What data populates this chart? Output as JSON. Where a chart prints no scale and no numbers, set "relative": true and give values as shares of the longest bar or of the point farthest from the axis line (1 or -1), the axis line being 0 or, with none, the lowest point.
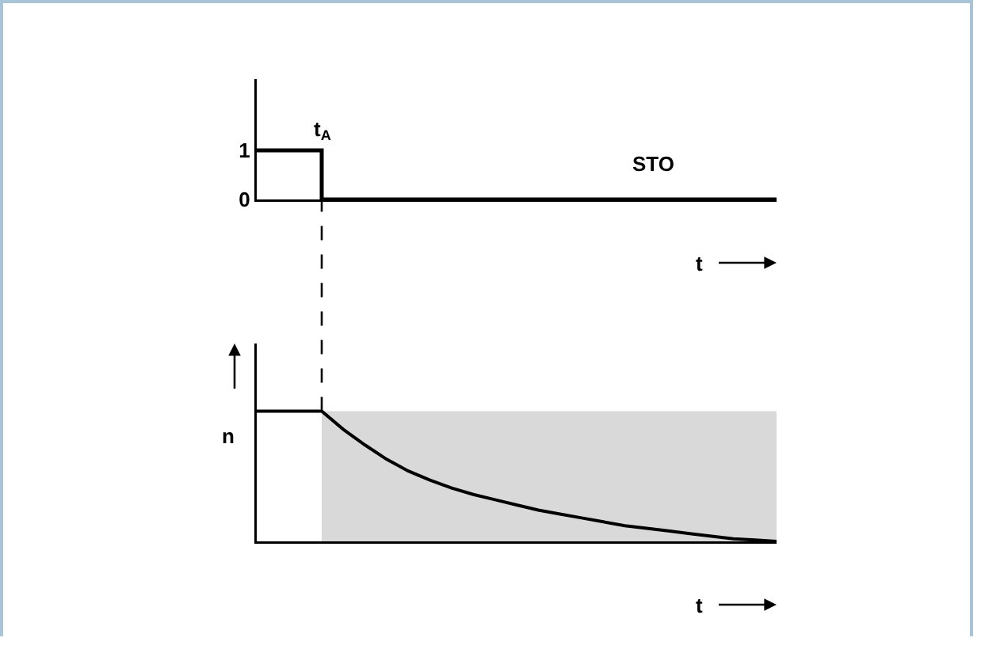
{
  "chart_data": [
    {
      "type": "step",
      "categories": [
        null,
        null,
        null,
        null,
        null,
        null,
        null,
        null,
        null
      ],
      "values": [
        1,
        0,
        0,
        0,
        0,
        0,
        0,
        0,
        0
      ],
      "color": "#000000",
      "ylim": [
        0,
        2.45
      ],
      "yticks": [
        0,
        1
      ],
      "xlabel": "t",
      "annotations": [
        "t$_{A}$",
        "STO"
      ],
      "tick_labels": "y",
      "grid": false
    },
    {
      "type": "line",
      "relative": true,
      "categories": [
        null,
        null,
        null,
        null,
        null,
        null,
        null,
        null,
        null,
        null,
        null,
        null,
        null,
        null,
        null,
        null,
        null,
        null,
        null,
        null,
        null,
        null,
        null,
        null,
        null
      ],
      "values": [
        1,
        1,
        1,
        1,
        0.86,
        0.74,
        0.63,
        0.54,
        0.47,
        0.41,
        0.36,
        0.32,
        0.28,
        0.24,
        0.21,
        0.18,
        0.15,
        0.12,
        0.1,
        0.08,
        0.06,
        0.04,
        0.02,
        0.01,
        0
      ],
      "color": "#000000",
      "xlabel": "t",
      "ylabel": "n",
      "tick_labels": false,
      "grid": false
    }
  ]
}
